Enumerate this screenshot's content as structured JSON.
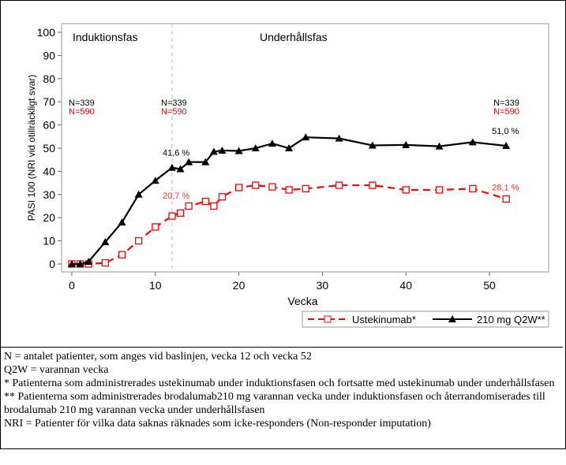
{
  "chart_data": {
    "type": "line",
    "xlabel": "Vecka",
    "ylabel": "PASI 100 (NRI vid otillräckligt svar)",
    "xlim": [
      -1,
      57
    ],
    "ylim": [
      -2,
      102
    ],
    "xticks": [
      0,
      10,
      20,
      30,
      40,
      50
    ],
    "yticks": [
      0,
      10,
      20,
      30,
      40,
      50,
      60,
      70,
      80,
      90,
      100
    ],
    "phase_labels": [
      "Induktionsfas",
      "Underhållsfas"
    ],
    "phase_divider_x": 12,
    "n_labels": [
      {
        "x": 0,
        "black": "N=339",
        "red": "N=590"
      },
      {
        "x": 12,
        "black": "N=339",
        "red": "N=590"
      },
      {
        "x": 52,
        "black": "N=339",
        "red": "N=590"
      }
    ],
    "series": [
      {
        "name": "Ustekinumab*",
        "color": "#ff0000",
        "style": "dashed",
        "marker": "square-open",
        "x": [
          0,
          1,
          2,
          4,
          6,
          8,
          10,
          12,
          13,
          14,
          16,
          17,
          18,
          20,
          22,
          24,
          26,
          28,
          32,
          36,
          40,
          44,
          48,
          52
        ],
        "values": [
          0,
          0,
          0,
          0.5,
          4,
          10,
          16,
          20.7,
          22,
          25,
          27,
          25,
          29,
          33,
          34,
          33.3,
          32,
          32.5,
          34,
          34,
          32,
          32,
          32.5,
          28.1
        ],
        "annotations": [
          {
            "x": 12,
            "text": "20,7 %"
          },
          {
            "x": 52,
            "text": "28,1 %"
          }
        ]
      },
      {
        "name": "210 mg Q2W**",
        "color": "#000000",
        "style": "solid",
        "marker": "triangle",
        "x": [
          0,
          1,
          2,
          4,
          6,
          8,
          10,
          12,
          13,
          14,
          16,
          17,
          18,
          20,
          22,
          24,
          26,
          28,
          32,
          36,
          40,
          44,
          48,
          52
        ],
        "values": [
          0,
          0,
          1,
          9.5,
          18,
          30,
          36,
          41.6,
          41,
          44,
          44,
          48.5,
          49,
          48.8,
          50,
          52,
          50,
          54.7,
          54.2,
          51.2,
          51.4,
          50.8,
          52.6,
          51.0
        ],
        "annotations": [
          {
            "x": 12,
            "text": "41,6 %"
          },
          {
            "x": 52,
            "text": "51,0 %"
          }
        ]
      }
    ],
    "legend_position": "bottom-right",
    "grid": false
  },
  "notes": [
    "N = antalet patienter, som anges vid baslinjen, vecka 12 och vecka 52",
    "Q2W = varannan vecka",
    "* Patienterna som administrerades ustekinumab under induktionsfasen och fortsatte med ustekinumab under underhållsfasen",
    "** Patienterna som administrerades brodalumab210 mg varannan vecka under induktionsfasen och återrandomiserades till brodalumab 210 mg varannan vecka under underhållsfasen",
    "NRI = Patienter för vilka data saknas räknades som icke-responders (Non-responder imputation)"
  ]
}
